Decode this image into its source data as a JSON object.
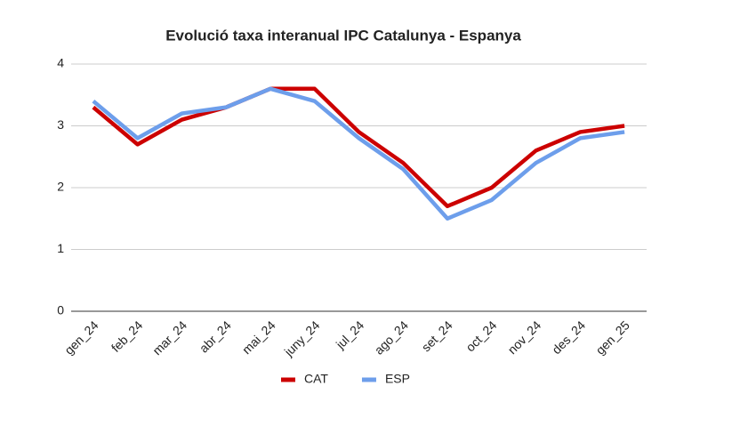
{
  "chart_data": {
    "type": "line",
    "title": "Evolució taxa interanual IPC Catalunya - Espanya",
    "categories": [
      "gen_24",
      "feb_24",
      "mar_24",
      "abr_24",
      "mai_24",
      "juny_24",
      "jul_24",
      "ago_24",
      "set_24",
      "oct_24",
      "nov_24",
      "des_24",
      "gen_25"
    ],
    "series": [
      {
        "name": "CAT",
        "color": "#cc0000",
        "values": [
          3.3,
          2.7,
          3.1,
          3.3,
          3.6,
          3.6,
          2.9,
          2.4,
          1.7,
          2.0,
          2.6,
          2.9,
          3.0
        ]
      },
      {
        "name": "ESP",
        "color": "#6d9eeb",
        "values": [
          3.4,
          2.8,
          3.2,
          3.3,
          3.6,
          3.4,
          2.8,
          2.3,
          1.5,
          1.8,
          2.4,
          2.8,
          2.9
        ]
      }
    ],
    "ylim": [
      0,
      4
    ],
    "yticks": [
      0,
      1,
      2,
      3,
      4
    ],
    "grid": true,
    "legend": "bottom"
  }
}
